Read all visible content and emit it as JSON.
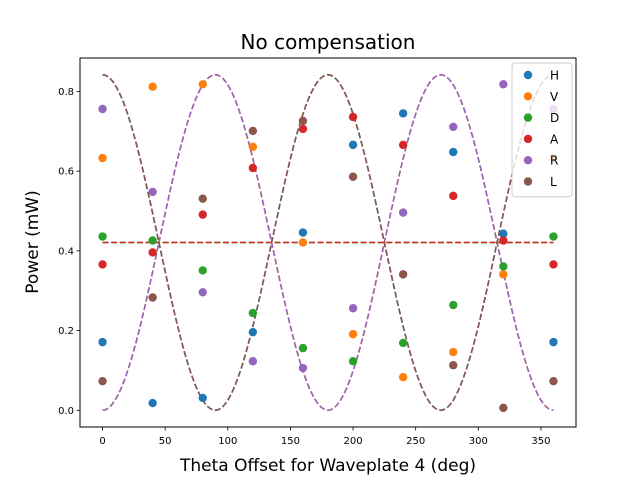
{
  "chart_data": {
    "type": "scatter",
    "title": "No compensation",
    "xlabel": "Theta Offset for Waveplate 4 (deg)",
    "ylabel": "Power (mW)",
    "xlim": [
      -18,
      378
    ],
    "ylim": [
      -0.042,
      0.884
    ],
    "xticks": [
      0,
      50,
      100,
      150,
      200,
      250,
      300,
      350
    ],
    "yticks": [
      0.0,
      0.2,
      0.4,
      0.6,
      0.8
    ],
    "grid": false,
    "legend_position": "top-right",
    "x": [
      0,
      40,
      80,
      120,
      160,
      200,
      240,
      280,
      320,
      360
    ],
    "series": [
      {
        "name": "H",
        "color": "#1f77b4",
        "values": [
          0.171,
          0.018,
          0.031,
          0.196,
          0.446,
          0.666,
          0.745,
          0.648,
          0.443,
          0.171
        ]
      },
      {
        "name": "V",
        "color": "#ff7f0e",
        "values": [
          0.633,
          0.812,
          0.818,
          0.661,
          0.421,
          0.191,
          0.083,
          0.146,
          0.341,
          0.633
        ]
      },
      {
        "name": "D",
        "color": "#2ca02c",
        "values": [
          0.436,
          0.426,
          0.351,
          0.244,
          0.156,
          0.123,
          0.169,
          0.264,
          0.361,
          0.436
        ]
      },
      {
        "name": "A",
        "color": "#d62728",
        "values": [
          0.366,
          0.396,
          0.491,
          0.608,
          0.706,
          0.736,
          0.666,
          0.538,
          0.426,
          0.366
        ]
      },
      {
        "name": "R",
        "color": "#9467bd",
        "values": [
          0.756,
          0.548,
          0.296,
          0.123,
          0.106,
          0.256,
          0.496,
          0.711,
          0.818,
          0.756
        ]
      },
      {
        "name": "L",
        "color": "#8c564b",
        "values": [
          0.073,
          0.283,
          0.531,
          0.701,
          0.726,
          0.586,
          0.341,
          0.113,
          0.006,
          0.073
        ]
      }
    ],
    "fit_curves": [
      {
        "color": "#1f77b4",
        "style": "dashed",
        "offset": 0.421,
        "amplitude": 0.421,
        "period_deg": 180,
        "phase_deg": 0
      },
      {
        "color": "#ff7f0e",
        "style": "dashed",
        "offset": 0.421,
        "amplitude": -0.421,
        "period_deg": 180,
        "phase_deg": 0
      },
      {
        "color": "#2ca02c",
        "style": "dashed",
        "offset": 0.421,
        "amplitude": 0.0,
        "period_deg": 180,
        "phase_deg": 0
      },
      {
        "color": "#d62728",
        "style": "dashed",
        "offset": 0.421,
        "amplitude": 0.0,
        "period_deg": 180,
        "phase_deg": 0
      },
      {
        "color": "#9467bd",
        "style": "dashed",
        "offset": 0.421,
        "amplitude": 0.421,
        "period_deg": 180,
        "phase_deg": 90
      },
      {
        "color": "#8c564b",
        "style": "dashed",
        "offset": 0.421,
        "amplitude": -0.421,
        "period_deg": 180,
        "phase_deg": 90
      }
    ]
  }
}
